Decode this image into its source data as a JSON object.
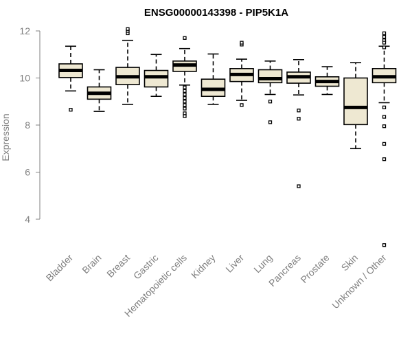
{
  "chart_data": {
    "type": "box",
    "title": "ENSG00000143398 - PIP5K1A",
    "xlabel": "",
    "ylabel": "Expression",
    "ylim": [
      3,
      12
    ],
    "yticks": [
      4,
      6,
      8,
      10,
      12
    ],
    "grid": false,
    "legend": "none",
    "colors": {
      "box_fill": "#EEE8D2",
      "box_stroke": "#000000",
      "median": "#000000",
      "axis": "#808080",
      "text": "#808080"
    },
    "categories": [
      "Bladder",
      "Brain",
      "Breast",
      "Gastric",
      "Hematopoietic cells",
      "Kidney",
      "Liver",
      "Lung",
      "Pancreas",
      "Prostate",
      "Skin",
      "Unknown / Other"
    ],
    "boxes": [
      {
        "q1": 10.02,
        "median": 10.32,
        "q3": 10.6,
        "whisker_low": 9.45,
        "whisker_high": 11.35,
        "outliers": [
          8.65
        ]
      },
      {
        "q1": 9.1,
        "median": 9.35,
        "q3": 9.62,
        "whisker_low": 8.58,
        "whisker_high": 10.35,
        "outliers": []
      },
      {
        "q1": 9.72,
        "median": 10.05,
        "q3": 10.45,
        "whisker_low": 8.88,
        "whisker_high": 11.6,
        "outliers": [
          11.9,
          12.0,
          12.08
        ]
      },
      {
        "q1": 9.62,
        "median": 10.05,
        "q3": 10.32,
        "whisker_low": 9.22,
        "whisker_high": 11.0,
        "outliers": []
      },
      {
        "q1": 10.28,
        "median": 10.55,
        "q3": 10.72,
        "whisker_low": 9.7,
        "whisker_high": 11.25,
        "outliers": [
          11.7,
          9.6,
          9.45,
          9.3,
          9.15,
          9.0,
          8.85,
          8.7,
          8.5,
          8.38
        ]
      },
      {
        "q1": 9.22,
        "median": 9.52,
        "q3": 9.95,
        "whisker_low": 8.88,
        "whisker_high": 11.02,
        "outliers": []
      },
      {
        "q1": 9.85,
        "median": 10.15,
        "q3": 10.4,
        "whisker_low": 9.05,
        "whisker_high": 10.8,
        "outliers": [
          11.42,
          11.5,
          8.85
        ]
      },
      {
        "q1": 9.8,
        "median": 9.97,
        "q3": 10.35,
        "whisker_low": 9.3,
        "whisker_high": 10.72,
        "outliers": [
          9.0,
          8.12
        ]
      },
      {
        "q1": 9.78,
        "median": 10.05,
        "q3": 10.25,
        "whisker_low": 9.28,
        "whisker_high": 10.78,
        "outliers": [
          8.62,
          8.27,
          5.4
        ]
      },
      {
        "q1": 9.65,
        "median": 9.85,
        "q3": 10.05,
        "whisker_low": 9.3,
        "whisker_high": 10.48,
        "outliers": []
      },
      {
        "q1": 8.02,
        "median": 8.75,
        "q3": 10.0,
        "whisker_low": 7.0,
        "whisker_high": 10.65,
        "outliers": []
      },
      {
        "q1": 9.8,
        "median": 10.05,
        "q3": 10.4,
        "whisker_low": 8.95,
        "whisker_high": 11.35,
        "outliers": [
          11.9,
          11.75,
          11.6,
          11.5,
          11.3,
          8.75,
          8.35,
          7.95,
          7.2,
          6.55,
          2.9
        ]
      }
    ]
  }
}
